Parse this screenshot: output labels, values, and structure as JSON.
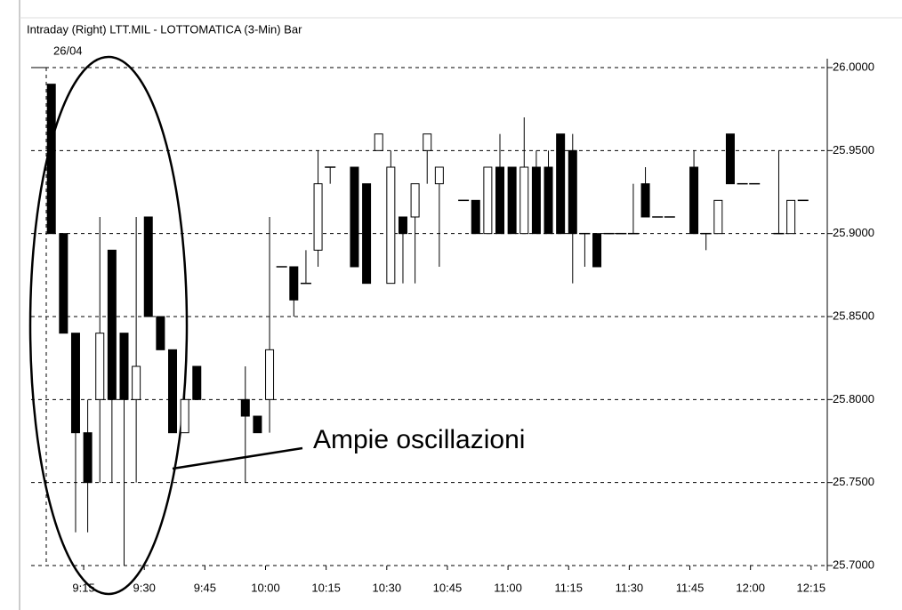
{
  "chart_data": {
    "type": "candlestick",
    "title": "Intraday (Right) LTT.MIL - LOTTOMATICA (3-Min) Bar",
    "date_label": "26/04",
    "annotation": "Ampie oscillazioni",
    "x": [
      "9:07",
      "9:10",
      "9:13",
      "9:16",
      "9:19",
      "9:22",
      "9:25",
      "9:28",
      "9:31",
      "9:34",
      "9:37",
      "9:40",
      "9:43",
      "9:55",
      "9:58",
      "10:01",
      "10:04",
      "10:07",
      "10:10",
      "10:13",
      "10:16",
      "10:22",
      "10:25",
      "10:28",
      "10:31",
      "10:34",
      "10:37",
      "10:40",
      "10:43",
      "10:49",
      "10:52",
      "10:55",
      "10:58",
      "11:01",
      "11:04",
      "11:07",
      "11:10",
      "11:13",
      "11:16",
      "11:19",
      "11:22",
      "11:25",
      "11:28",
      "11:31",
      "11:34",
      "11:37",
      "11:40",
      "11:46",
      "11:49",
      "11:52",
      "11:55",
      "11:58",
      "12:01",
      "12:07",
      "12:10",
      "12:13"
    ],
    "open": [
      25.99,
      25.9,
      25.84,
      25.78,
      25.8,
      25.89,
      25.84,
      25.8,
      25.91,
      25.85,
      25.83,
      25.78,
      25.82,
      25.8,
      25.79,
      25.8,
      25.88,
      25.88,
      25.87,
      25.89,
      25.94,
      25.94,
      25.93,
      25.95,
      25.87,
      25.91,
      25.91,
      25.95,
      25.93,
      25.92,
      25.92,
      25.9,
      25.94,
      25.94,
      25.9,
      25.94,
      25.94,
      25.96,
      25.95,
      25.9,
      25.9,
      25.9,
      25.9,
      25.9,
      25.93,
      25.91,
      25.91,
      25.94,
      25.9,
      25.9,
      25.96,
      25.93,
      25.93,
      25.9,
      25.9,
      25.92
    ],
    "high": [
      25.99,
      25.9,
      25.84,
      25.8,
      25.91,
      25.89,
      25.84,
      25.91,
      25.91,
      25.85,
      25.83,
      25.81,
      25.82,
      25.82,
      25.79,
      25.91,
      25.88,
      25.88,
      25.89,
      25.95,
      25.94,
      25.94,
      25.93,
      25.96,
      25.95,
      25.91,
      25.93,
      25.96,
      25.94,
      25.92,
      25.92,
      25.94,
      25.96,
      25.94,
      25.97,
      25.95,
      25.95,
      25.96,
      25.96,
      25.9,
      25.9,
      25.9,
      25.9,
      25.93,
      25.94,
      25.91,
      25.91,
      25.95,
      25.9,
      25.92,
      25.96,
      25.93,
      25.93,
      25.95,
      25.92,
      25.92
    ],
    "low": [
      25.9,
      25.84,
      25.72,
      25.72,
      25.75,
      25.75,
      25.7,
      25.75,
      25.85,
      25.83,
      25.78,
      25.78,
      25.8,
      25.75,
      25.78,
      25.78,
      25.88,
      25.85,
      25.87,
      25.88,
      25.93,
      25.88,
      25.87,
      25.95,
      25.87,
      25.87,
      25.87,
      25.93,
      25.88,
      25.92,
      25.9,
      25.9,
      25.9,
      25.9,
      25.9,
      25.9,
      25.9,
      25.9,
      25.87,
      25.88,
      25.88,
      25.9,
      25.9,
      25.9,
      25.91,
      25.91,
      25.91,
      25.9,
      25.89,
      25.9,
      25.93,
      25.93,
      25.93,
      25.9,
      25.9,
      25.92
    ],
    "close": [
      25.9,
      25.84,
      25.78,
      25.75,
      25.84,
      25.8,
      25.8,
      25.82,
      25.85,
      25.83,
      25.78,
      25.8,
      25.8,
      25.79,
      25.78,
      25.83,
      25.88,
      25.86,
      25.87,
      25.93,
      25.94,
      25.88,
      25.87,
      25.96,
      25.94,
      25.9,
      25.93,
      25.96,
      25.94,
      25.92,
      25.9,
      25.94,
      25.9,
      25.9,
      25.94,
      25.9,
      25.9,
      25.9,
      25.9,
      25.9,
      25.88,
      25.9,
      25.9,
      25.9,
      25.91,
      25.91,
      25.91,
      25.9,
      25.9,
      25.92,
      25.93,
      25.93,
      25.93,
      25.9,
      25.92,
      25.92
    ],
    "xlim": [
      "9:02",
      "12:19"
    ],
    "xticks": [
      "9:15",
      "9:30",
      "9:45",
      "10:00",
      "10:15",
      "10:30",
      "10:45",
      "11:00",
      "11:15",
      "11:30",
      "11:45",
      "12:00",
      "12:15"
    ],
    "ylim": [
      25.7,
      26.0
    ],
    "yticks": [
      {
        "value": 25.7,
        "label": "25.7000"
      },
      {
        "value": 25.75,
        "label": "25.7500"
      },
      {
        "value": 25.8,
        "label": "25.8000"
      },
      {
        "value": 25.85,
        "label": "25.8500"
      },
      {
        "value": 25.9,
        "label": "25.9000"
      },
      {
        "value": 25.95,
        "label": "25.9500"
      },
      {
        "value": 26.0,
        "label": "26.0000"
      }
    ],
    "grid": true,
    "up_color": "#ffffff",
    "down_color": "#000000"
  }
}
